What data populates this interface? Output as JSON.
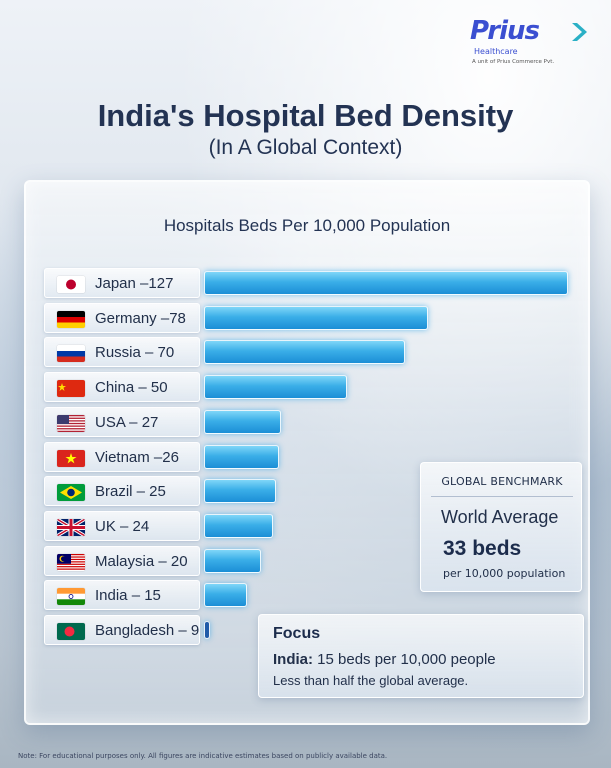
{
  "brand": {
    "word": "rius",
    "prefix": "P",
    "sub": "Healthcare",
    "tagline": "A unit of Prius Commerce Pvt.",
    "color": "#3b4fd1"
  },
  "header": {
    "title": "India's Hospital Bed Density",
    "subtitle": "(In A Global Context)"
  },
  "chart_data": {
    "type": "bar",
    "orientation": "horizontal",
    "title": "Hospitals Beds Per 10,000 Population",
    "categories": [
      "Japan",
      "Germany",
      "Russia",
      "China",
      "USA",
      "Vietnam",
      "Brazil",
      "UK",
      "Malaysia",
      "India",
      "Bangladesh"
    ],
    "labels": [
      "Japan –127",
      "Germany –78",
      "Russia – 70",
      "China – 50",
      "USA – 27",
      "Vietnam –26",
      "Brazil – 25",
      "UK – 24",
      "Malaysia – 20",
      "India – 15",
      "Bangladesh – 9"
    ],
    "values": [
      127,
      78,
      70,
      50,
      27,
      26,
      25,
      24,
      20,
      15,
      9
    ],
    "flags": [
      "japan-flag-icon",
      "germany-flag-icon",
      "russia-flag-icon",
      "china-flag-icon",
      "usa-flag-icon",
      "vietnam-flag-icon",
      "brazil-flag-icon",
      "uk-flag-icon",
      "malaysia-flag-icon",
      "india-flag-icon",
      "bangladesh-flag-icon"
    ],
    "highlight": "India",
    "bar_color": "#3aaee8",
    "xlim": [
      0,
      127
    ]
  },
  "benchmark": {
    "heading": "GLOBAL BENCHMARK",
    "label": "World Average",
    "value": "33 beds",
    "unit": "per 10,000 population"
  },
  "focus": {
    "heading": "Focus",
    "country": "India:",
    "line1": " 15 beds per 10,000 people",
    "line2": "Less than half the global average."
  },
  "footnote": "Note: For educational purposes only. All figures are indicative estimates based on publicly available data."
}
